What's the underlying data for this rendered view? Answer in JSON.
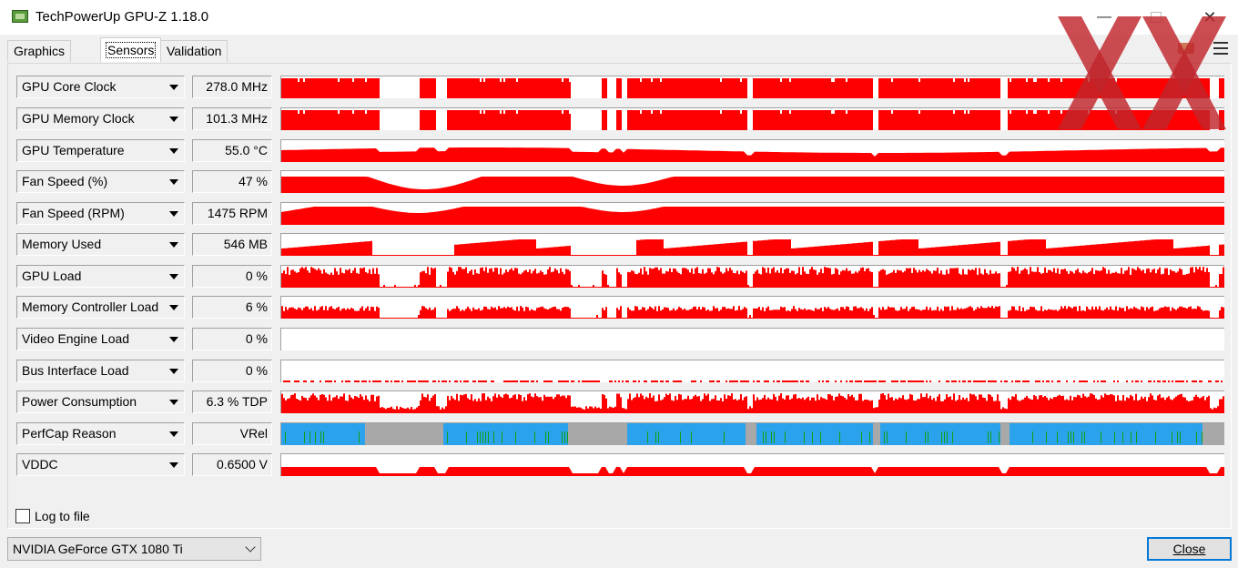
{
  "window": {
    "title": "TechPowerUp GPU-Z 1.18.0",
    "icon": "gpu-z-app-icon",
    "controls": {
      "minimize": "—",
      "close": "✕"
    }
  },
  "tabs": [
    {
      "label": "Graphics Card",
      "active": false
    },
    {
      "label": "Sensors",
      "active": true
    },
    {
      "label": "Validation",
      "active": false
    }
  ],
  "toolbar": {
    "icons": [
      "camera-icon",
      "hamburger-menu-icon"
    ]
  },
  "colors": {
    "graph_red": "#ff0000",
    "perfcap_vrel": "#2ba3ec",
    "perfcap_idle": "#a8a8a8",
    "perfcap_util": "#13a013",
    "watermark": "#c0262c"
  },
  "sensors": [
    {
      "label": "GPU Core Clock",
      "value": "278.0 MHz",
      "graph": "clock"
    },
    {
      "label": "GPU Memory Clock",
      "value": "101.3 MHz",
      "graph": "clock"
    },
    {
      "label": "GPU Temperature",
      "value": "55.0 °C",
      "graph": "temp"
    },
    {
      "label": "Fan Speed (%)",
      "value": "47 %",
      "graph": "fan"
    },
    {
      "label": "Fan Speed (RPM)",
      "value": "1475 RPM",
      "graph": "fan2"
    },
    {
      "label": "Memory Used",
      "value": "546 MB",
      "graph": "mem"
    },
    {
      "label": "GPU Load",
      "value": "0 %",
      "graph": "load"
    },
    {
      "label": "Memory Controller Load",
      "value": "6 %",
      "graph": "memctl"
    },
    {
      "label": "Video Engine Load",
      "value": "0 %",
      "graph": "empty"
    },
    {
      "label": "Bus Interface Load",
      "value": "0 %",
      "graph": "bus"
    },
    {
      "label": "Power Consumption",
      "value": "6.3 % TDP",
      "graph": "power"
    },
    {
      "label": "PerfCap Reason",
      "value": "VRel",
      "graph": "perfcap"
    },
    {
      "label": "VDDC",
      "value": "0.6500 V",
      "graph": "vddc"
    }
  ],
  "log_to_file": {
    "label": "Log to file",
    "checked": false
  },
  "device_select": {
    "value": "NVIDIA GeForce GTX 1080 Ti"
  },
  "close_button": {
    "label": "Close"
  }
}
